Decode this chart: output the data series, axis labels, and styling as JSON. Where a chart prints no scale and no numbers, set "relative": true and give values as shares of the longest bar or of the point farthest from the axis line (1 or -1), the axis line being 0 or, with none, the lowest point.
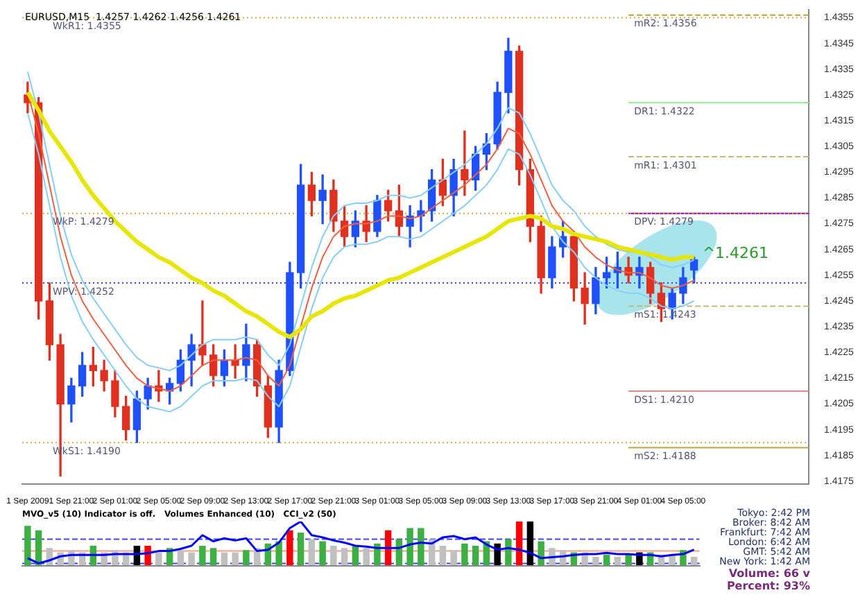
{
  "chart_data": [
    {
      "type": "candlestick",
      "title": "EURUSD,M15  1.4257 1.4262 1.4256 1.4261",
      "categories": [
        "1 Sep 2009",
        null,
        null,
        null,
        "1 Sep 21:00",
        null,
        null,
        null,
        "2 Sep 01:00",
        null,
        null,
        null,
        "2 Sep 05:00",
        null,
        null,
        null,
        "2 Sep 09:00",
        null,
        null,
        null,
        "2 Sep 13:00",
        null,
        null,
        null,
        "2 Sep 17:00",
        null,
        null,
        null,
        "2 Sep 21:00",
        null,
        null,
        null,
        "3 Sep 01:00",
        null,
        null,
        null,
        "3 Sep 05:00",
        null,
        null,
        null,
        "3 Sep 09:00",
        null,
        null,
        null,
        "3 Sep 13:00",
        null,
        null,
        null,
        "3 Sep 17:00",
        null,
        null,
        null,
        "3 Sep 21:00",
        null,
        null,
        null,
        "4 Sep 01:00",
        null,
        null,
        null,
        "4 Sep 05:00",
        null,
        null,
        null,
        null,
        null,
        null,
        null,
        null,
        null,
        null,
        null
      ],
      "ohlc": [
        [
          1.4325,
          1.433,
          1.4318,
          1.4322
        ],
        [
          1.4322,
          1.4324,
          1.4238,
          1.4245
        ],
        [
          1.4245,
          1.4252,
          1.4222,
          1.4228
        ],
        [
          1.4228,
          1.4232,
          1.4177,
          1.4205
        ],
        [
          1.4205,
          1.4215,
          1.4198,
          1.4212
        ],
        [
          1.4212,
          1.4225,
          1.4208,
          1.422
        ],
        [
          1.422,
          1.4227,
          1.4212,
          1.4218
        ],
        [
          1.4218,
          1.4222,
          1.421,
          1.4214
        ],
        [
          1.4214,
          1.4218,
          1.42,
          1.4204
        ],
        [
          1.4204,
          1.4208,
          1.4191,
          1.4195
        ],
        [
          1.4195,
          1.421,
          1.419,
          1.4207
        ],
        [
          1.4207,
          1.4215,
          1.4203,
          1.4212
        ],
        [
          1.4212,
          1.4218,
          1.4206,
          1.421
        ],
        [
          1.421,
          1.4215,
          1.4205,
          1.4213
        ],
        [
          1.4213,
          1.4226,
          1.421,
          1.4222
        ],
        [
          1.4222,
          1.4232,
          1.4212,
          1.4228
        ],
        [
          1.4228,
          1.4245,
          1.422,
          1.4224
        ],
        [
          1.4224,
          1.4228,
          1.4212,
          1.4216
        ],
        [
          1.4216,
          1.4226,
          1.4212,
          1.4222
        ],
        [
          1.4222,
          1.4228,
          1.4215,
          1.422
        ],
        [
          1.422,
          1.4236,
          1.4214,
          1.4228
        ],
        [
          1.4228,
          1.423,
          1.4208,
          1.4212
        ],
        [
          1.4212,
          1.4216,
          1.4192,
          1.4196
        ],
        [
          1.4196,
          1.4222,
          1.419,
          1.4218
        ],
        [
          1.4218,
          1.426,
          1.4216,
          1.4256
        ],
        [
          1.4256,
          1.4298,
          1.425,
          1.429
        ],
        [
          1.429,
          1.4295,
          1.4278,
          1.4284
        ],
        [
          1.4284,
          1.4294,
          1.4275,
          1.4288
        ],
        [
          1.4288,
          1.4292,
          1.4272,
          1.4276
        ],
        [
          1.4276,
          1.4282,
          1.4266,
          1.427
        ],
        [
          1.427,
          1.428,
          1.4266,
          1.4276
        ],
        [
          1.4276,
          1.4282,
          1.4268,
          1.4272
        ],
        [
          1.4272,
          1.4286,
          1.427,
          1.4284
        ],
        [
          1.4284,
          1.4288,
          1.4276,
          1.428
        ],
        [
          1.428,
          1.429,
          1.427,
          1.4274
        ],
        [
          1.4274,
          1.4282,
          1.4266,
          1.4278
        ],
        [
          1.4278,
          1.4284,
          1.4272,
          1.428
        ],
        [
          1.428,
          1.4296,
          1.4276,
          1.4292
        ],
        [
          1.4292,
          1.43,
          1.4282,
          1.4286
        ],
        [
          1.4286,
          1.43,
          1.4278,
          1.4296
        ],
        [
          1.4296,
          1.4311,
          1.4286,
          1.4292
        ],
        [
          1.4292,
          1.4305,
          1.4288,
          1.4302
        ],
        [
          1.4302,
          1.431,
          1.4296,
          1.4306
        ],
        [
          1.4306,
          1.433,
          1.4304,
          1.4326
        ],
        [
          1.4326,
          1.4347,
          1.4318,
          1.4342
        ],
        [
          1.4342,
          1.4344,
          1.429,
          1.4296
        ],
        [
          1.4296,
          1.43,
          1.4268,
          1.4274
        ],
        [
          1.4274,
          1.4278,
          1.4248,
          1.4254
        ],
        [
          1.4254,
          1.427,
          1.425,
          1.4266
        ],
        [
          1.4266,
          1.4276,
          1.4262,
          1.427
        ],
        [
          1.427,
          1.4272,
          1.4245,
          1.425
        ],
        [
          1.425,
          1.4256,
          1.4236,
          1.4244
        ],
        [
          1.4244,
          1.4258,
          1.424,
          1.4254
        ],
        [
          1.4254,
          1.4262,
          1.425,
          1.4256
        ],
        [
          1.4256,
          1.4264,
          1.425,
          1.4258
        ],
        [
          1.4258,
          1.4262,
          1.4252,
          1.4255
        ],
        [
          1.4255,
          1.4262,
          1.425,
          1.4258
        ],
        [
          1.4258,
          1.426,
          1.4244,
          1.4248
        ],
        [
          1.4248,
          1.4252,
          1.4237,
          1.4242
        ],
        [
          1.4242,
          1.425,
          1.4238,
          1.4248
        ],
        [
          1.4248,
          1.4258,
          1.4244,
          1.4254
        ],
        [
          1.4257,
          1.4262,
          1.4252,
          1.4261
        ],
        null,
        null,
        null,
        null,
        null,
        null,
        null,
        null,
        null,
        null
      ],
      "series": [
        {
          "type": "line",
          "color": "#e6e600",
          "values": [
            1.4326,
            1.4319,
            1.4311,
            1.4305,
            1.4299,
            1.4292,
            1.4286,
            1.4281,
            1.4276,
            1.4272,
            1.4268,
            1.4265,
            1.4262,
            1.426,
            1.4257,
            1.4254,
            1.4252,
            1.4249,
            1.4247,
            1.4244,
            1.4241,
            1.4239,
            1.4236,
            1.4233,
            1.4231,
            1.4234,
            1.4239,
            1.4241,
            1.4244,
            1.4246,
            1.4247,
            1.4249,
            1.4251,
            1.4253,
            1.4254,
            1.4256,
            1.4258,
            1.426,
            1.4262,
            1.4264,
            1.4266,
            1.4268,
            1.427,
            1.4273,
            1.4276,
            1.4277,
            1.4278,
            1.4277,
            1.4274,
            1.4273,
            1.4271,
            1.427,
            1.4269,
            1.4268,
            1.4266,
            1.4265,
            1.4264,
            1.4263,
            1.4262,
            1.4261,
            1.4262,
            1.4262,
            null,
            null,
            null,
            null,
            null,
            null,
            null,
            null,
            null,
            null
          ]
        },
        {
          "type": "line",
          "color": "#f06040",
          "values": [
            1.4326,
            1.431,
            1.429,
            1.427,
            1.4255,
            1.4245,
            1.4238,
            1.4232,
            1.4226,
            1.422,
            1.4215,
            1.4212,
            1.4211,
            1.421,
            1.4212,
            1.4216,
            1.422,
            1.4222,
            1.4222,
            1.4222,
            1.4223,
            1.4222,
            1.4216,
            1.4212,
            1.422,
            1.4235,
            1.425,
            1.4262,
            1.427,
            1.4274,
            1.4275,
            1.4275,
            1.4276,
            1.4278,
            1.4278,
            1.4277,
            1.4278,
            1.4281,
            1.4284,
            1.4287,
            1.429,
            1.4294,
            1.4298,
            1.4304,
            1.4312,
            1.431,
            1.4302,
            1.4292,
            1.4282,
            1.4276,
            1.4272,
            1.4266,
            1.4262,
            1.4259,
            1.4257,
            1.4256,
            1.4256,
            1.4254,
            1.4251,
            1.425,
            1.4251,
            1.4253,
            null,
            null,
            null,
            null,
            null,
            null,
            null,
            null,
            null,
            null
          ]
        },
        {
          "type": "line",
          "color": "#87cefa",
          "values": [
            1.4334,
            1.4318,
            1.4298,
            1.4278,
            1.4263,
            1.4253,
            1.4246,
            1.424,
            1.4234,
            1.4228,
            1.4223,
            1.422,
            1.4219,
            1.4218,
            1.422,
            1.4224,
            1.4228,
            1.423,
            1.423,
            1.423,
            1.4231,
            1.423,
            1.4224,
            1.422,
            1.4228,
            1.4243,
            1.4258,
            1.427,
            1.4278,
            1.4282,
            1.4283,
            1.4283,
            1.4284,
            1.4286,
            1.4286,
            1.4285,
            1.4286,
            1.4289,
            1.4292,
            1.4295,
            1.4298,
            1.4302,
            1.4306,
            1.4312,
            1.432,
            1.4318,
            1.431,
            1.43,
            1.429,
            1.4284,
            1.428,
            1.4274,
            1.427,
            1.4267,
            1.4265,
            1.4264,
            1.4264,
            1.4262,
            1.4259,
            1.4258,
            1.4259,
            1.4261,
            null,
            null,
            null,
            null,
            null,
            null,
            null,
            null,
            null,
            null
          ]
        },
        {
          "type": "line",
          "color": "#87cefa",
          "values": [
            1.4318,
            1.4302,
            1.4282,
            1.4262,
            1.4247,
            1.4237,
            1.423,
            1.4224,
            1.4218,
            1.4212,
            1.4207,
            1.4204,
            1.4203,
            1.4202,
            1.4204,
            1.4208,
            1.4212,
            1.4214,
            1.4214,
            1.4214,
            1.4215,
            1.4214,
            1.4208,
            1.4204,
            1.4212,
            1.4227,
            1.4242,
            1.4254,
            1.4262,
            1.4266,
            1.4267,
            1.4267,
            1.4268,
            1.427,
            1.427,
            1.4269,
            1.427,
            1.4273,
            1.4276,
            1.4279,
            1.4282,
            1.4286,
            1.429,
            1.4296,
            1.4304,
            1.4302,
            1.4294,
            1.4284,
            1.4274,
            1.4268,
            1.4264,
            1.4258,
            1.4254,
            1.4251,
            1.4249,
            1.4248,
            1.4248,
            1.4246,
            1.4243,
            1.4242,
            1.4243,
            1.4245,
            null,
            null,
            null,
            null,
            null,
            null,
            null,
            null,
            null,
            null
          ]
        }
      ],
      "ylim": [
        1.4174,
        1.4358
      ],
      "yticks": [
        1.4175,
        1.4185,
        1.4195,
        1.4205,
        1.4215,
        1.4225,
        1.4235,
        1.4245,
        1.4255,
        1.4265,
        1.4275,
        1.4285,
        1.4295,
        1.4305,
        1.4315,
        1.4325,
        1.4335,
        1.4345,
        1.4355
      ],
      "tick_labels": true,
      "ref_lines": [
        {
          "axis": "y",
          "value": 1.4356,
          "label": "mR2: 1.4356",
          "color": "#b5a642",
          "line_style": "dashed"
        },
        {
          "axis": "y",
          "value": 1.4355,
          "label": "WkR1: 1.4355",
          "color": "#c8b040",
          "line_style": "dotted"
        },
        {
          "axis": "y",
          "value": 1.4322,
          "label": "DR1: 1.4322",
          "color": "#90ee90",
          "line_style": "solid"
        },
        {
          "axis": "y",
          "value": 1.4301,
          "label": "mR1: 1.4301",
          "color": "#c8b878",
          "line_style": "dashed"
        },
        {
          "axis": "y",
          "value": 1.4279,
          "label": "DPV: 1.4279",
          "color": "#9400d3",
          "line_style": "solid"
        },
        {
          "axis": "y",
          "value": 1.4279,
          "label": "WkP: 1.4279",
          "color": "#c8b040",
          "line_style": "dotted"
        },
        {
          "axis": "y",
          "value": 1.4252,
          "label": "WPV: 1.4252",
          "color": "#4040ff",
          "line_style": "dotted"
        },
        {
          "axis": "y",
          "value": 1.4243,
          "label": "mS1: 1.4243",
          "color": "#c8b878",
          "line_style": "dashed"
        },
        {
          "axis": "y",
          "value": 1.421,
          "label": "DS1: 1.4210",
          "color": "#f08080",
          "line_style": "solid"
        },
        {
          "axis": "y",
          "value": 1.419,
          "label": "WkS1: 1.4190",
          "color": "#c8b040",
          "line_style": "dotted"
        },
        {
          "axis": "y",
          "value": 1.4188,
          "label": "mS2: 1.4188",
          "color": "#b5a642",
          "line_style": "solid"
        }
      ],
      "annotations": [
        "^1.4261"
      ]
    },
    {
      "type": "bar",
      "relative": true,
      "title": "MVO_v5 (10) Indicator is off.   Volumes Enhanced (10)   CCI_v2 (50)",
      "categories": [
        null,
        null,
        null,
        null,
        null,
        null,
        null,
        null,
        null,
        null,
        null,
        null,
        null,
        null,
        null,
        null,
        null,
        null,
        null,
        null,
        null,
        null,
        null,
        null,
        null,
        null,
        null,
        null,
        null,
        null,
        null,
        null,
        null,
        null,
        null,
        null,
        null,
        null,
        null,
        null,
        null,
        null,
        null,
        null,
        null,
        null,
        null,
        null,
        null,
        null,
        null,
        null,
        null,
        null,
        null,
        null,
        null,
        null,
        null,
        null,
        null,
        null
      ],
      "series": [
        {
          "type": "bar",
          "values": [
            0.9,
            0.8,
            0.4,
            0.3,
            0.35,
            0.3,
            0.45,
            0.3,
            0.35,
            0.3,
            0.45,
            0.45,
            0.3,
            0.4,
            0.35,
            0.3,
            0.45,
            0.4,
            0.3,
            0.3,
            0.35,
            0.4,
            0.5,
            0.55,
            0.8,
            0.75,
            0.6,
            0.55,
            0.45,
            0.4,
            0.45,
            0.4,
            0.5,
            0.8,
            0.6,
            0.85,
            0.85,
            0.6,
            0.45,
            0.35,
            0.5,
            0.45,
            0.55,
            0.5,
            0.6,
            1,
            1,
            0.55,
            0.4,
            0.35,
            0.3,
            0.3,
            0.2,
            0.25,
            0.2,
            0.25,
            0.3,
            0.3,
            0.25,
            0.25,
            0.35,
            0.2
          ],
          "colors": [
            "#3cb043",
            "#3cb043",
            "#c0c0c0",
            "#c0c0c0",
            "#c0c0c0",
            "#c0c0c0",
            "#3cb043",
            "#c0c0c0",
            "#c0c0c0",
            "#c0c0c0",
            "#000000",
            "#ff0000",
            "#c0c0c0",
            "#3cb043",
            "#c0c0c0",
            "#c0c0c0",
            "#3cb043",
            "#3cb043",
            "#c0c0c0",
            "#c0c0c0",
            "#3cb043",
            "#c0c0c0",
            "#3cb043",
            "#3cb043",
            "#ff0000",
            "#3cb043",
            "#c0c0c0",
            "#3cb043",
            "#c0c0c0",
            "#c0c0c0",
            "#3cb043",
            "#c0c0c0",
            "#3cb043",
            "#ff0000",
            "#3cb043",
            "#3cb043",
            "#3cb043",
            "#c0c0c0",
            "#c0c0c0",
            "#c0c0c0",
            "#3cb043",
            "#3cb043",
            "#3cb043",
            "#000000",
            "#3cb043",
            "#ff0000",
            "#000000",
            "#3cb043",
            "#c0c0c0",
            "#c0c0c0",
            "#3cb043",
            "#c0c0c0",
            "#c0c0c0",
            "#3cb043",
            "#c0c0c0",
            "#3cb043",
            "#000000",
            "#3cb043",
            "#c0c0c0",
            "#c0c0c0",
            "#3cb043",
            "#c0c0c0"
          ]
        }
      ],
      "ref_lines": [
        {
          "axis": "y",
          "value": 0.6,
          "color": "#4040ff",
          "line_style": "dashed"
        },
        {
          "axis": "y",
          "value": 0.33,
          "color": "#f4a080",
          "line_style": "solid"
        },
        {
          "axis": "y",
          "value": 0.05,
          "color": "#4040ff",
          "line_style": "dashed"
        }
      ]
    },
    {
      "type": "line",
      "relative": true,
      "categories": [
        null,
        null,
        null,
        null,
        null,
        null,
        null,
        null,
        null,
        null,
        null,
        null,
        null,
        null,
        null,
        null,
        null,
        null,
        null,
        null,
        null,
        null,
        null,
        null,
        null,
        null,
        null,
        null,
        null,
        null,
        null,
        null,
        null,
        null,
        null,
        null,
        null,
        null,
        null,
        null,
        null,
        null,
        null,
        null,
        null,
        null,
        null,
        null,
        null,
        null,
        null,
        null,
        null,
        null,
        null,
        null,
        null,
        null,
        null,
        null,
        null,
        null
      ],
      "series": [
        {
          "type": "line",
          "color": "#0000ff",
          "values": [
            0.17,
            0.05,
            0.12,
            0.21,
            0.24,
            0.24,
            0.24,
            0.24,
            0.26,
            0.26,
            0.26,
            0.28,
            0.33,
            0.33,
            0.38,
            0.45,
            0.69,
            0.55,
            0.62,
            0.57,
            0.62,
            0.33,
            0.36,
            0.52,
            0.85,
            1,
            0.69,
            0.64,
            0.57,
            0.52,
            0.45,
            0.43,
            0.4,
            0.4,
            0.4,
            0.48,
            0.52,
            0.5,
            0.64,
            0.67,
            0.6,
            0.64,
            0.48,
            0.36,
            0.4,
            0.36,
            0.29,
            0.17,
            0.19,
            0.21,
            0.24,
            0.26,
            0.26,
            0.29,
            0.26,
            0.26,
            0.24,
            0.24,
            0.21,
            0.24,
            0.26,
            0.36
          ]
        }
      ]
    },
    {
      "type": "other",
      "annotations": [
        "Tokyo: 2:42 PM",
        "Broker: 8:42 AM",
        "Frankfurt: 7:42 AM",
        "London: 6:42 AM",
        "GMT: 5:42 AM",
        "New York: 1:42 AM",
        "Volume: 66 v",
        "Percent: 93%"
      ]
    }
  ]
}
